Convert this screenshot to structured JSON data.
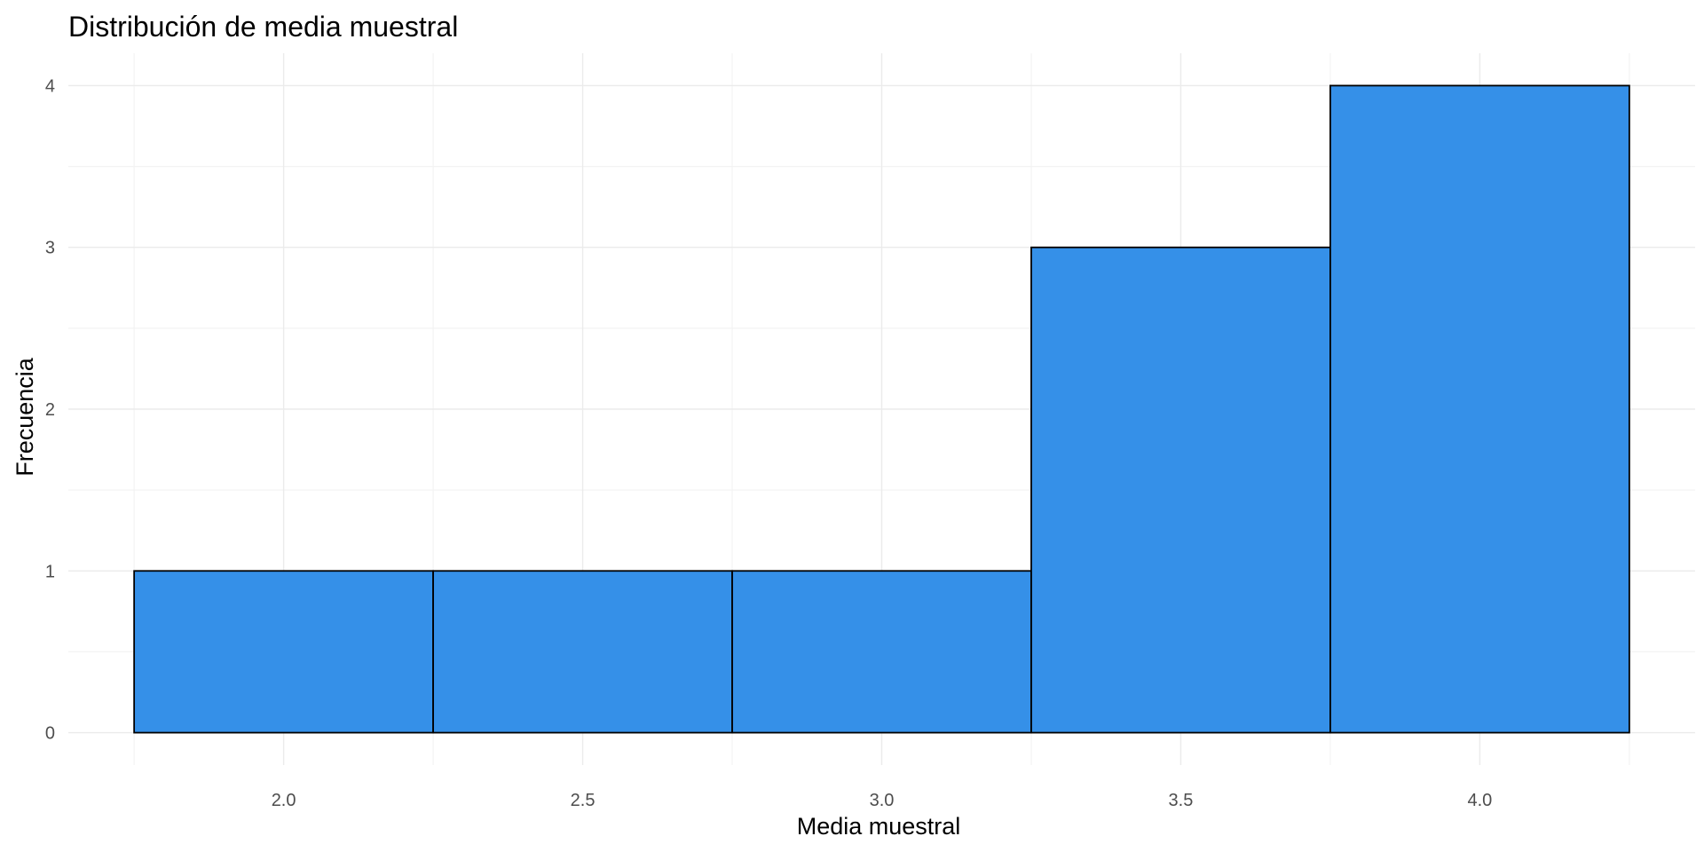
{
  "chart_data": {
    "type": "bar",
    "title": "Distribución de media muestral",
    "xlabel": "Media muestral",
    "ylabel": "Frecuencia",
    "bins": [
      {
        "x_start": 1.75,
        "x_end": 2.25,
        "count": 1
      },
      {
        "x_start": 2.25,
        "x_end": 2.75,
        "count": 1
      },
      {
        "x_start": 2.75,
        "x_end": 3.25,
        "count": 1
      },
      {
        "x_start": 3.25,
        "x_end": 3.75,
        "count": 3
      },
      {
        "x_start": 3.75,
        "x_end": 4.25,
        "count": 4
      }
    ],
    "x_ticks": [
      "2.0",
      "2.5",
      "3.0",
      "3.5",
      "4.0"
    ],
    "y_ticks": [
      "0",
      "1",
      "2",
      "3",
      "4"
    ],
    "xlim": [
      1.64,
      4.36
    ],
    "ylim": [
      -0.2,
      4.2
    ],
    "grid": true,
    "legend": "none",
    "colors": {
      "bar_fill": "#3590e8",
      "bar_border": "#000000"
    }
  }
}
